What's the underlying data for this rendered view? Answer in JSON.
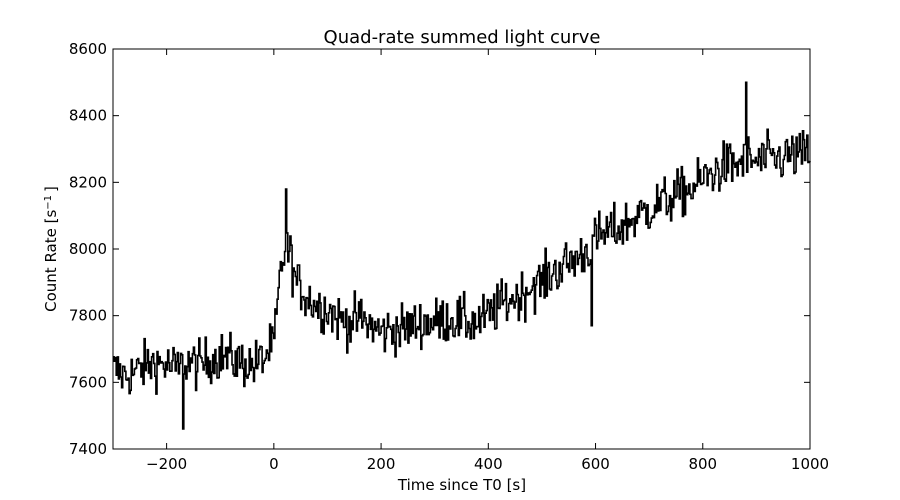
{
  "chart_data": {
    "type": "line",
    "title": "Quad-rate summed light curve",
    "xlabel": "Time since T0 [s]",
    "ylabel_main": "Count Rate [s",
    "ylabel_sup": "−1",
    "ylabel_close": "]",
    "xlim": [
      -300,
      1000
    ],
    "ylim": [
      7400,
      8600
    ],
    "x_ticks": [
      -200,
      0,
      200,
      400,
      600,
      800,
      1000
    ],
    "x_tick_labels": [
      "−200",
      "0",
      "200",
      "400",
      "600",
      "800",
      "1000"
    ],
    "y_ticks": [
      7400,
      7600,
      7800,
      8000,
      8200,
      8400,
      8600
    ],
    "y_tick_labels": [
      "7400",
      "7600",
      "7800",
      "8000",
      "8200",
      "8400",
      "8600"
    ],
    "grid": false,
    "line_color": "#000000",
    "series": [
      {
        "x": [
          -300,
          -280,
          -260,
          -240,
          -220,
          -200,
          -180,
          -160,
          -140,
          -120,
          -100,
          -80,
          -60,
          -40,
          -20,
          0,
          10,
          20,
          30,
          40,
          60,
          80,
          100,
          120,
          140,
          160,
          180,
          200,
          220,
          240,
          260,
          280,
          300,
          320,
          340,
          360,
          380,
          400,
          420,
          440,
          460,
          480,
          500,
          520,
          540,
          560,
          580,
          600,
          620,
          640,
          660,
          680,
          700,
          720,
          740,
          760,
          780,
          800,
          820,
          840,
          860,
          880,
          900,
          920,
          940,
          960,
          980,
          1000
        ],
        "y": [
          7640,
          7620,
          7630,
          7650,
          7660,
          7650,
          7640,
          7660,
          7650,
          7670,
          7680,
          7670,
          7660,
          7650,
          7670,
          7720,
          7900,
          8010,
          7980,
          7900,
          7860,
          7830,
          7820,
          7790,
          7780,
          7790,
          7770,
          7750,
          7760,
          7760,
          7770,
          7780,
          7780,
          7790,
          7790,
          7780,
          7780,
          7800,
          7830,
          7850,
          7860,
          7890,
          7900,
          7930,
          7950,
          7970,
          7990,
          8030,
          8050,
          8060,
          8080,
          8100,
          8120,
          8140,
          8150,
          8170,
          8180,
          8210,
          8230,
          8250,
          8250,
          8270,
          8260,
          8270,
          8270,
          8280,
          8280,
          8290
        ]
      }
    ],
    "noise_amplitude": 52,
    "burst_spikes": [
      {
        "x": 22,
        "y": 8180
      },
      {
        "x": 880,
        "y": 8500
      },
      {
        "x": 592,
        "y": 7770
      },
      {
        "x": -170,
        "y": 7460
      }
    ]
  }
}
